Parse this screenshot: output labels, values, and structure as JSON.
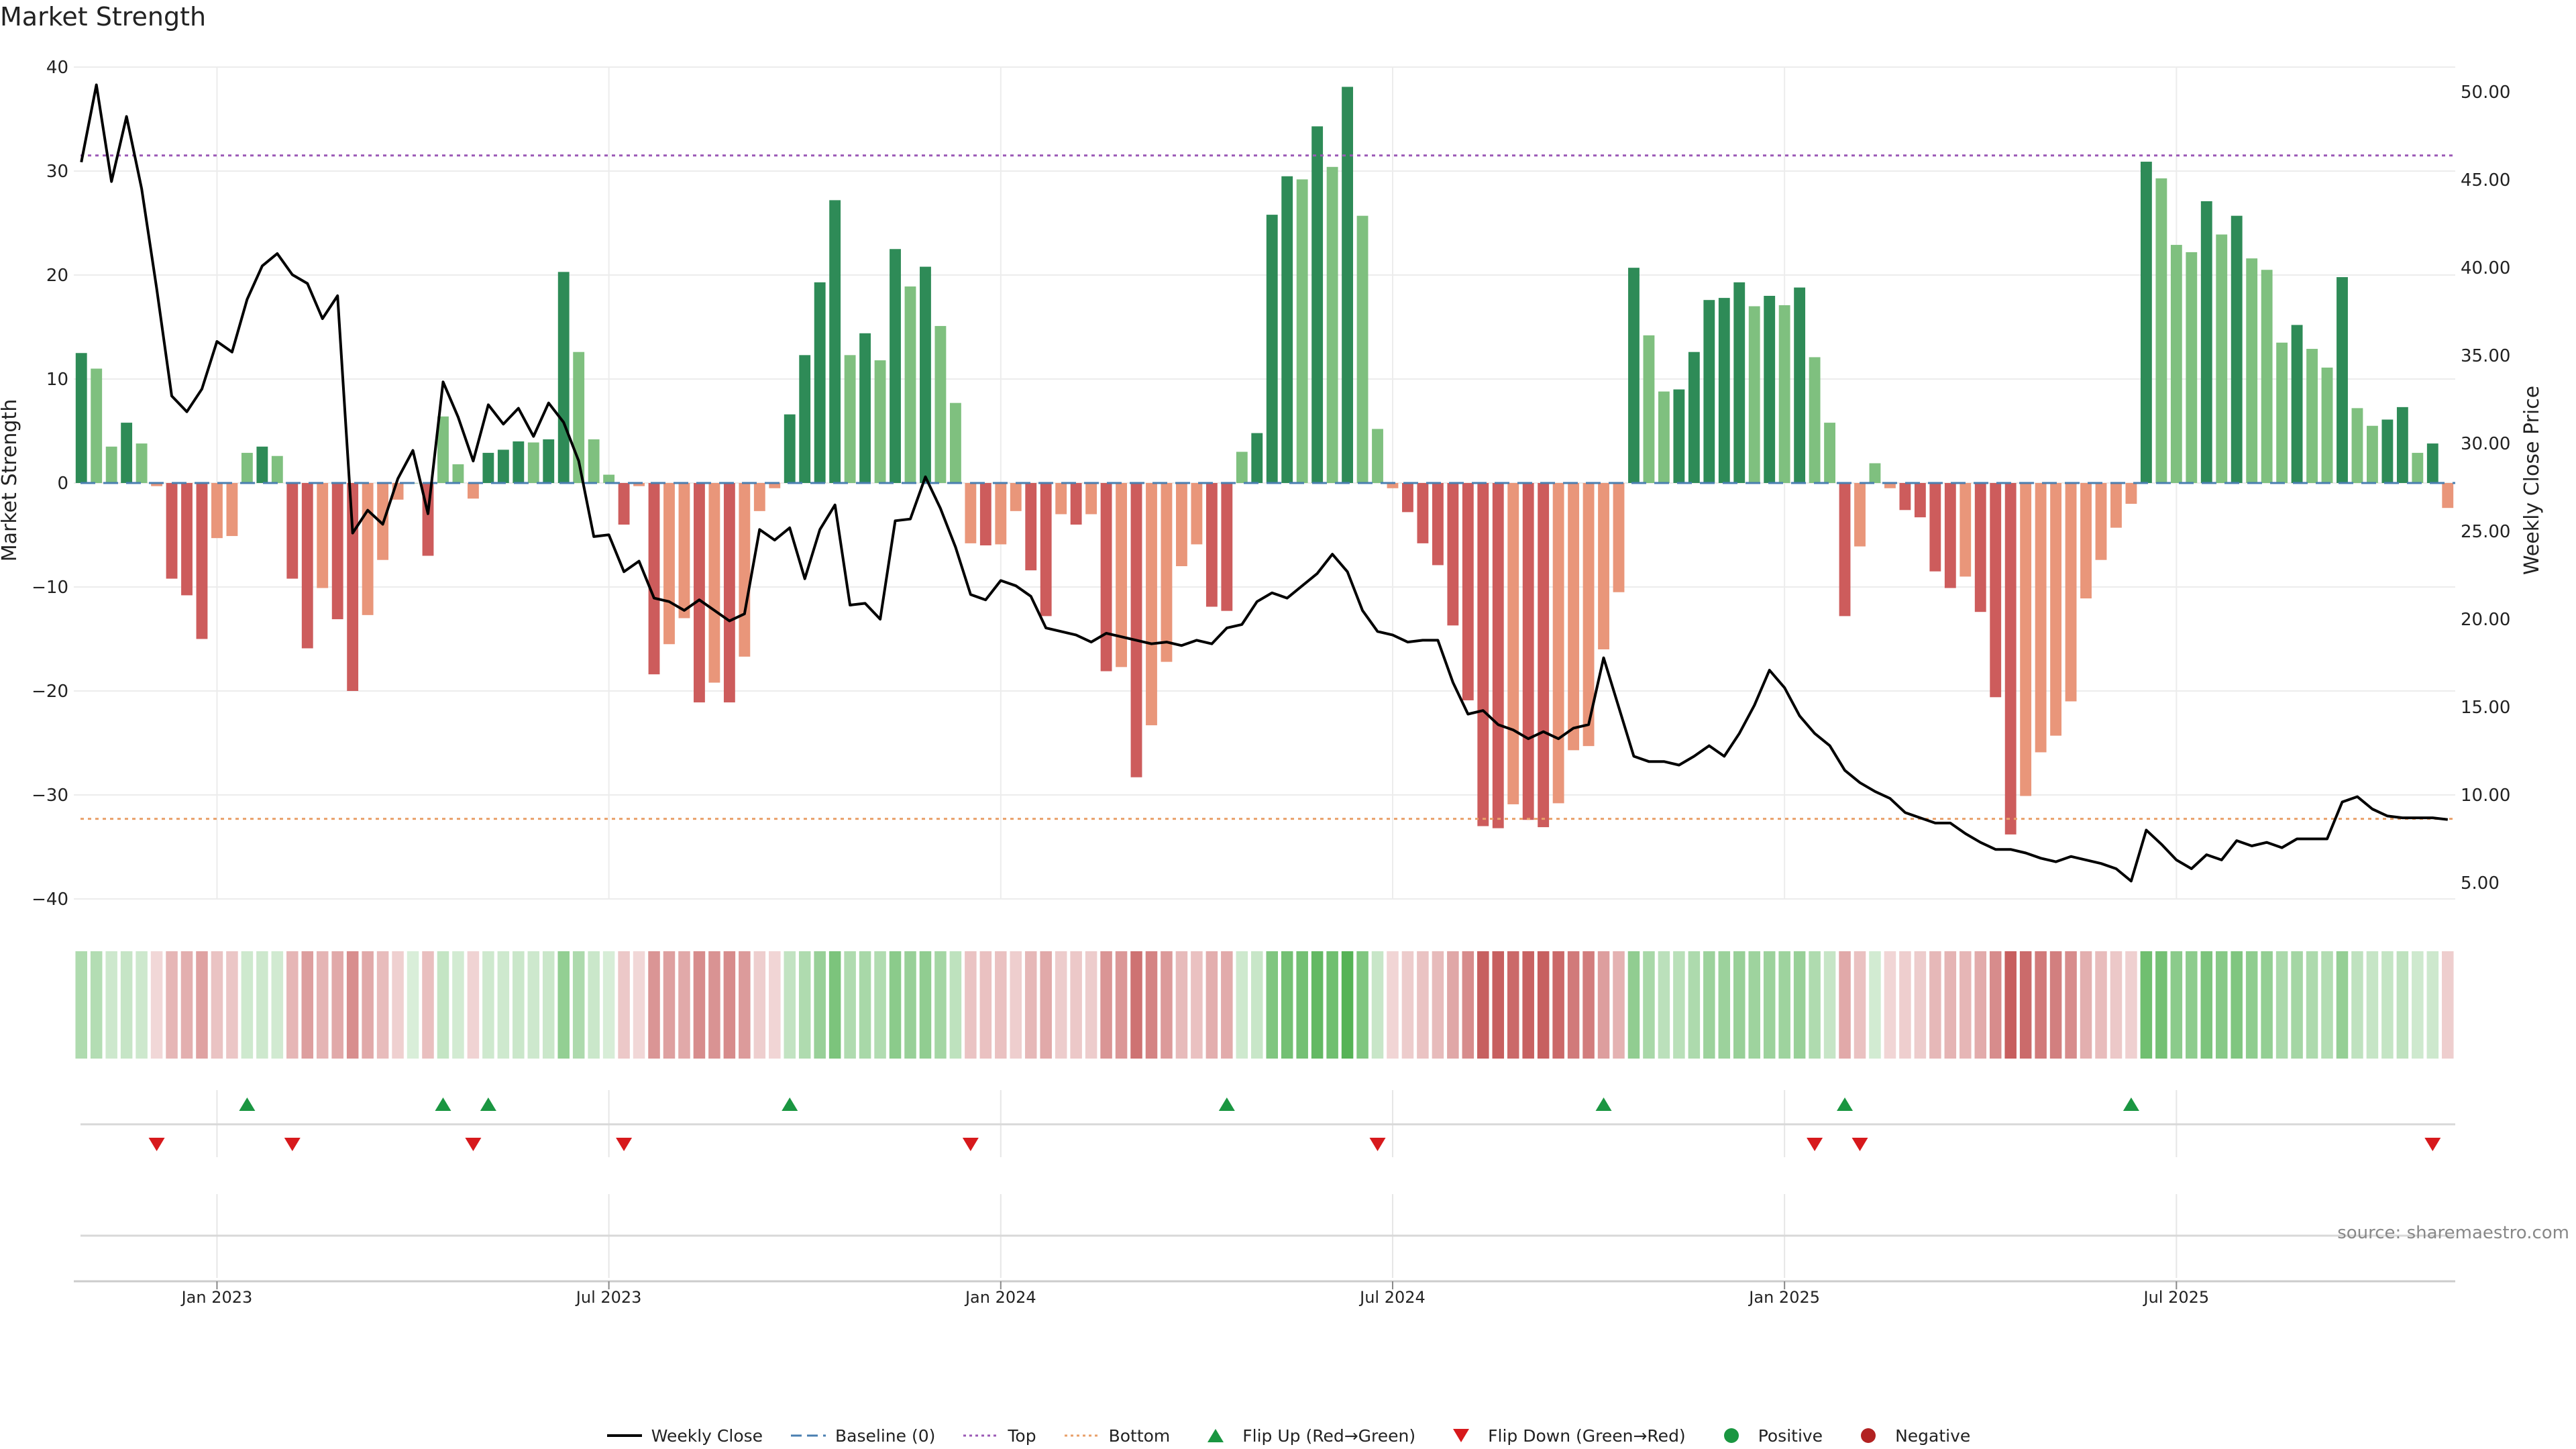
{
  "chart_data": {
    "type": "bar",
    "title": "Market Strength",
    "ylabel_left": "Market Strength",
    "ylabel_right": "Weekly Close Price",
    "ylim_left": [
      -40,
      40
    ],
    "ylim_right": [
      2.5,
      52.0
    ],
    "yticks_left": [
      "40",
      "30",
      "20",
      "10",
      "0",
      "−10",
      "−20",
      "−30",
      "−40"
    ],
    "yticks_left_values": [
      40,
      30,
      20,
      10,
      0,
      -10,
      -20,
      -30,
      -40
    ],
    "yticks_right": [
      "50.00",
      "45.00",
      "40.00",
      "35.00",
      "30.00",
      "25.00",
      "20.00",
      "15.00",
      "10.00",
      "5.00"
    ],
    "yticks_right_values": [
      50,
      45,
      40,
      35,
      30,
      25,
      20,
      15,
      10,
      5
    ],
    "xticks": [
      {
        "label": "Jan 2023",
        "week": 9.5
      },
      {
        "label": "Jul 2023",
        "week": 35.5
      },
      {
        "label": "Jan 2024",
        "week": 61.5
      },
      {
        "label": "Jul 2024",
        "week": 87.5
      },
      {
        "label": "Jan 2025",
        "week": 113.5
      },
      {
        "label": "Jul 2025",
        "week": 139.5
      }
    ],
    "top_line": 31.5,
    "bottom_line": -32.3,
    "baseline": 0,
    "colors": {
      "pos_strong": "#2e8b57",
      "pos_weak": "#7fc07f",
      "neg_strong": "#cd5c5c",
      "neg_weak": "#e9967a",
      "close_line": "#000000",
      "baseline": "#4a7fb0",
      "top": "#9b59b6",
      "bottom": "#e9a06a",
      "flip_up": "#1a9641",
      "flip_down": "#d7191c",
      "heat_pos": "#2ca02c",
      "heat_neg": "#b22222"
    },
    "strength": [
      12.5,
      11,
      3.5,
      5.8,
      3.8,
      -0.3,
      -9.2,
      -10.8,
      -15,
      -5.3,
      -5.1,
      2.9,
      3.5,
      2.6,
      -9.2,
      -15.9,
      -10.1,
      -13.1,
      -20.0,
      -12.7,
      -7.4,
      -1.6,
      0,
      -7.0,
      6.4,
      1.8,
      -1.5,
      2.9,
      3.2,
      4.0,
      3.9,
      4.2,
      20.3,
      12.6,
      4.2,
      0.8,
      -4.0,
      -0.3,
      -18.4,
      -15.5,
      -13.0,
      -21.1,
      -19.2,
      -21.1,
      -16.7,
      -2.7,
      -0.5,
      6.6,
      12.3,
      19.3,
      27.2,
      12.3,
      14.4,
      11.8,
      22.5,
      18.9,
      20.8,
      15.1,
      7.7,
      -5.8,
      -6.0,
      -5.9,
      -2.7,
      -8.4,
      -12.8,
      -3.0,
      -4.0,
      -3.0,
      -18.1,
      -17.7,
      -28.3,
      -23.3,
      -17.2,
      -8.0,
      -5.9,
      -11.9,
      -12.3,
      3.0,
      4.8,
      25.8,
      29.5,
      29.2,
      34.3,
      30.4,
      38.1,
      25.7,
      5.2,
      -0.5,
      -2.8,
      -5.8,
      -7.9,
      -13.7,
      -20.9,
      -33.0,
      -33.2,
      -30.9,
      -32.4,
      -33.1,
      -30.8,
      -25.7,
      -25.3,
      -16.0,
      -10.5,
      20.7,
      14.2,
      8.8,
      9.0,
      12.6,
      17.6,
      17.8,
      19.3,
      17.0,
      18.0,
      17.1,
      18.8,
      12.1,
      5.8,
      -12.8,
      -6.1,
      1.9,
      -0.5,
      -2.6,
      -3.3,
      -8.5,
      -10.1,
      -9.0,
      -12.4,
      -20.6,
      -33.8,
      -30.1,
      -25.9,
      -24.3,
      -21.0,
      -11.1,
      -7.4,
      -4.3,
      -2.0,
      30.9,
      29.3,
      22.9,
      22.2,
      27.1,
      23.9,
      25.7,
      21.6,
      20.5,
      13.5,
      15.2,
      12.9,
      11.1,
      19.8,
      7.2,
      5.5,
      6.1,
      7.3,
      2.9,
      3.8,
      -2.4
    ],
    "weekly_close": [
      46.0,
      50.4,
      44.9,
      48.6,
      44.5,
      38.8,
      32.7,
      31.8,
      33.1,
      35.8,
      35.2,
      38.2,
      40.1,
      40.8,
      39.6,
      39.1,
      37.1,
      38.4,
      24.9,
      26.2,
      25.4,
      28.0,
      29.6,
      26.0,
      33.5,
      31.5,
      29.0,
      32.2,
      31.1,
      32.0,
      30.4,
      32.3,
      31.2,
      29.0,
      24.7,
      24.8,
      22.7,
      23.3,
      21.2,
      21.0,
      20.5,
      21.1,
      20.5,
      19.9,
      20.3,
      25.1,
      24.5,
      25.2,
      22.3,
      25.1,
      26.5,
      20.8,
      20.9,
      20.0,
      25.6,
      25.7,
      28.1,
      26.3,
      24.1,
      21.4,
      21.1,
      22.2,
      21.9,
      21.3,
      19.5,
      19.3,
      19.1,
      18.7,
      19.2,
      19.0,
      18.8,
      18.6,
      18.7,
      18.5,
      18.8,
      18.6,
      19.5,
      19.7,
      21.0,
      21.5,
      21.2,
      21.9,
      22.6,
      23.7,
      22.7,
      20.5,
      19.3,
      19.1,
      18.7,
      18.8,
      18.8,
      16.4,
      14.6,
      14.8,
      14.0,
      13.7,
      13.2,
      13.6,
      13.2,
      13.8,
      14.0,
      17.8,
      15.0,
      12.2,
      11.9,
      11.9,
      11.7,
      12.2,
      12.8,
      12.2,
      13.5,
      15.1,
      17.1,
      16.1,
      14.5,
      13.5,
      12.8,
      11.4,
      10.7,
      10.2,
      9.8,
      9.0,
      8.7,
      8.4,
      8.4,
      7.8,
      7.3,
      6.9,
      6.9,
      6.7,
      6.4,
      6.2,
      6.5,
      6.3,
      6.1,
      5.8,
      5.1,
      8.0,
      7.2,
      6.3,
      5.8,
      6.6,
      6.3,
      7.4,
      7.1,
      7.3,
      7.0,
      7.5,
      7.5,
      7.5,
      9.6,
      9.9,
      9.2,
      8.8,
      8.7,
      8.7,
      8.7,
      8.6
    ],
    "flip_up_weeks": [
      11,
      24,
      27,
      47,
      76,
      101,
      117,
      136
    ],
    "flip_down_weeks": [
      5,
      14,
      26,
      36,
      59,
      86,
      115,
      118,
      156
    ],
    "source": "source: sharemaestro.com",
    "legend": [
      {
        "label": "Weekly Close",
        "symbol": "line"
      },
      {
        "label": "Baseline (0)",
        "symbol": "dashed"
      },
      {
        "label": "Top",
        "symbol": "dotted-top"
      },
      {
        "label": "Bottom",
        "symbol": "dotted-bottom"
      },
      {
        "label": "Flip Up (Red→Green)",
        "symbol": "triangle-up"
      },
      {
        "label": "Flip Down (Green→Red)",
        "symbol": "triangle-down"
      },
      {
        "label": "Positive",
        "symbol": "dot-positive"
      },
      {
        "label": "Negative",
        "symbol": "dot-negative"
      }
    ]
  }
}
